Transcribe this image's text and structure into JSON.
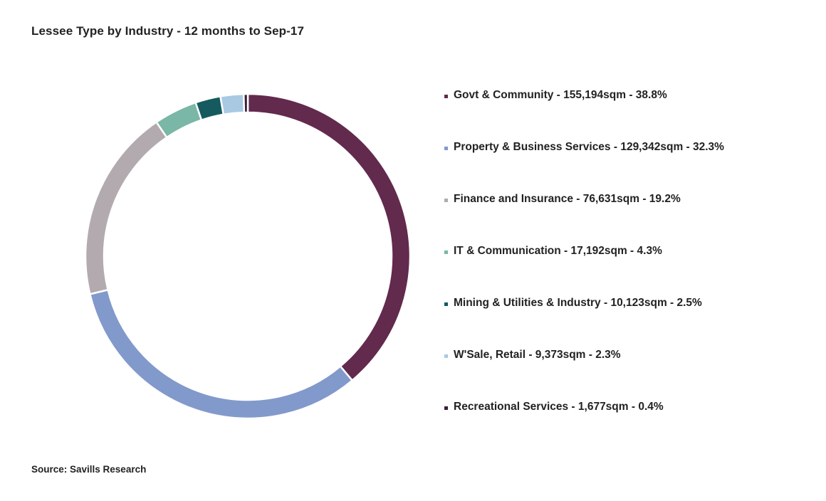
{
  "chart_data": {
    "type": "pie",
    "title": "Lessee Type by Industry - 12 months to Sep-17",
    "source": "Source: Savills Research",
    "series": [
      {
        "label": "Govt & Community - 155,194sqm  - 38.8%",
        "value": 38.8,
        "color": "#622a4d"
      },
      {
        "label": "Property & Business Services - 129,342sqm  - 32.3%",
        "value": 32.3,
        "color": "#8299cb"
      },
      {
        "label": "Finance and Insurance - 76,631sqm  - 19.2%",
        "value": 19.2,
        "color": "#b3aab0"
      },
      {
        "label": "IT & Communication - 17,192sqm  - 4.3%",
        "value": 4.3,
        "color": "#7ab7a6"
      },
      {
        "label": "Mining & Utilities & Industry - 10,123sqm  - 2.5%",
        "value": 2.5,
        "color": "#145a5f"
      },
      {
        "label": "W'Sale, Retail - 9,373sqm  - 2.3%",
        "value": 2.3,
        "color": "#a9c9e3"
      },
      {
        "label": "Recreational Services - 1,677sqm  - 0.4%",
        "value": 0.4,
        "color": "#3a1e35"
      }
    ]
  }
}
